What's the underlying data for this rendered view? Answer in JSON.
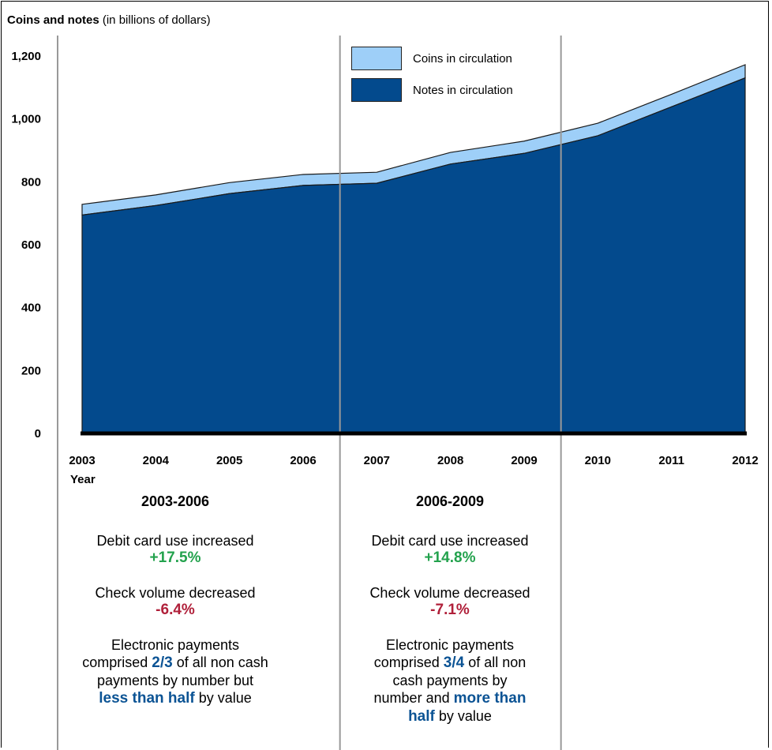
{
  "chart_data": {
    "type": "area",
    "title": "Coins and notes",
    "subtitle": "(in billions of dollars)",
    "xlabel": "Year",
    "ylabel": "",
    "categories": [
      "2003",
      "2004",
      "2005",
      "2006",
      "2007",
      "2008",
      "2009",
      "2010",
      "2011",
      "2012"
    ],
    "ylim": [
      0,
      1200
    ],
    "yticks": [
      "0",
      "200",
      "400",
      "600",
      "800",
      "1,000",
      "1,200"
    ],
    "ytick_values": [
      0,
      200,
      400,
      600,
      800,
      1000,
      1200
    ],
    "stacked": true,
    "grid": false,
    "legend_position": "top-center",
    "series": [
      {
        "name": "Notes in circulation",
        "color": "#034a8d",
        "values": [
          692,
          722,
          760,
          786,
          793,
          854,
          888,
          944,
          1036,
          1128
        ]
      },
      {
        "name": "Coins in circulation",
        "color": "#9ecff8",
        "values": [
          34,
          34,
          35,
          35,
          35,
          37,
          39,
          40,
          40,
          42
        ]
      }
    ],
    "period_dividers_after": [
      "2006",
      "2009"
    ]
  },
  "periods": [
    {
      "title": "2003-2006",
      "debit_label": "Debit card use increased",
      "debit_value": "+17.5%",
      "check_label": "Check volume decreased",
      "check_value": "-6.4%",
      "elec_line1": "Electronic payments",
      "elec_pre": "comprised ",
      "elec_fraction": "2/3",
      "elec_mid": " of all non cash",
      "elec_line3": "payments by number but",
      "elec_emph": "less than half",
      "elec_end": " by value"
    },
    {
      "title": "2006-2009",
      "debit_label": "Debit card use increased",
      "debit_value": "+14.8%",
      "check_label": "Check volume decreased",
      "check_value": "-7.1%",
      "elec_line1": "Electronic payments",
      "elec_pre": "comprised ",
      "elec_fraction": "3/4",
      "elec_mid": " of all non",
      "elec_line3": "cash payments by",
      "elec_line4_pre": "number and ",
      "elec_emph1": "more than",
      "elec_emph2": "half",
      "elec_end": " by value"
    }
  ]
}
